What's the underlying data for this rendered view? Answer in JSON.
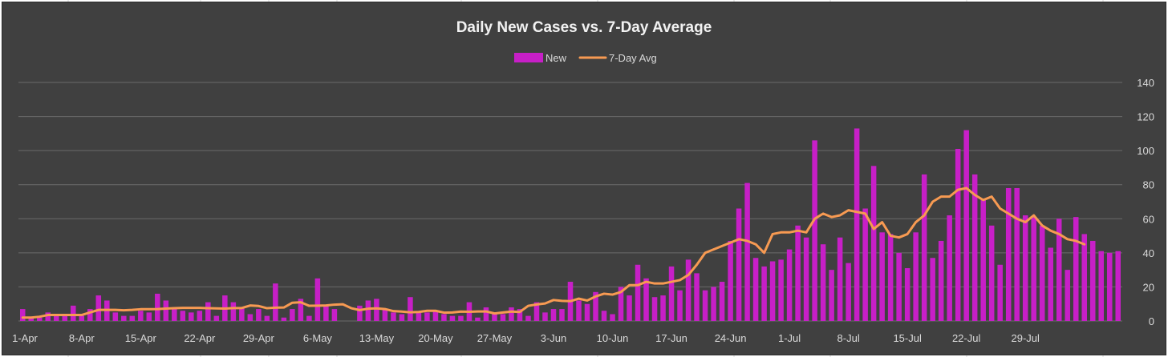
{
  "colors": {
    "background": "#404040",
    "bar": "#c71fc7",
    "line": "#f79a52",
    "grid": "#6a6a6a",
    "text": "#d9d9d9"
  },
  "chart_data": {
    "type": "bar",
    "title": "Daily New Cases vs. 7-Day Average",
    "legend_position": "top",
    "grid": true,
    "ylim": [
      0,
      140
    ],
    "yticks": [
      0,
      20,
      40,
      60,
      80,
      100,
      120,
      140
    ],
    "y_axis_side": "right",
    "x_tick_labels": [
      "1-Apr",
      "8-Apr",
      "15-Apr",
      "22-Apr",
      "29-Apr",
      "6-May",
      "13-May",
      "20-May",
      "27-May",
      "3-Jun",
      "10-Jun",
      "17-Jun",
      "24-Jun",
      "1-Jul",
      "8-Jul",
      "15-Jul",
      "22-Jul",
      "29-Jul"
    ],
    "x_tick_every": 7,
    "series": [
      {
        "name": "New",
        "type": "bar",
        "color": "#c71fc7",
        "values": [
          7,
          2,
          2,
          5,
          3,
          4,
          9,
          3,
          7,
          15,
          12,
          5,
          3,
          3,
          6,
          5,
          16,
          12,
          7,
          6,
          5,
          6,
          11,
          3,
          15,
          11,
          8,
          4,
          7,
          3,
          22,
          2,
          7,
          13,
          3,
          25,
          9,
          7,
          0,
          0,
          9,
          12,
          13,
          7,
          5,
          4,
          14,
          5,
          5,
          6,
          4,
          3,
          3,
          11,
          2,
          8,
          4,
          4,
          8,
          7,
          3,
          11,
          5,
          7,
          7,
          23,
          12,
          10,
          17,
          6,
          4,
          20,
          15,
          33,
          25,
          14,
          15,
          32,
          18,
          36,
          28,
          18,
          20,
          23,
          47,
          66,
          81,
          37,
          32,
          35,
          36,
          42,
          56,
          49,
          106,
          45,
          30,
          49,
          34,
          113,
          66,
          91,
          52,
          51,
          40,
          31,
          52,
          86,
          37,
          47,
          62,
          101,
          112,
          86,
          71,
          56,
          33,
          78,
          78,
          62,
          61,
          56,
          43,
          60,
          30,
          61,
          51,
          47,
          41,
          40,
          41
        ],
        "max_value": 113
      },
      {
        "name": "7-Day Avg",
        "type": "line",
        "color": "#f79a52",
        "values": [
          2,
          2,
          2.5,
          3.5,
          3.5,
          3.5,
          3.5,
          3.5,
          5,
          6.5,
          6.5,
          6.5,
          6.3,
          6.5,
          6.9,
          6.9,
          7,
          7.3,
          7.5,
          7.7,
          7.7,
          7.7,
          7.5,
          7.4,
          7.3,
          7.6,
          7.6,
          9.1,
          8.8,
          7.5,
          7.8,
          7.9,
          10.7,
          11,
          8.9,
          9,
          9.1,
          9.6,
          9.8,
          7.5,
          6.4,
          7.2,
          7.4,
          7,
          5.8,
          5.5,
          5.1,
          5.3,
          6,
          6,
          4.9,
          5,
          5.5,
          5.4,
          5.6,
          5.6,
          4.4,
          5,
          5.5,
          5.3,
          8.9,
          9.7,
          10.3,
          12.3,
          11.8,
          11.6,
          13.1,
          12,
          14.4,
          16,
          15.5,
          17,
          21,
          21,
          23,
          22,
          22,
          23,
          24,
          27,
          33,
          40,
          42,
          44,
          46,
          48,
          47,
          45,
          40,
          51,
          52,
          52,
          53,
          52,
          60,
          63,
          61,
          62,
          65,
          64,
          63,
          54,
          58,
          50,
          49,
          51,
          58,
          62,
          70,
          73,
          73,
          77,
          78,
          74,
          71,
          73,
          66,
          63,
          60,
          58,
          62,
          56,
          53,
          51,
          48,
          47,
          45
        ]
      }
    ]
  }
}
